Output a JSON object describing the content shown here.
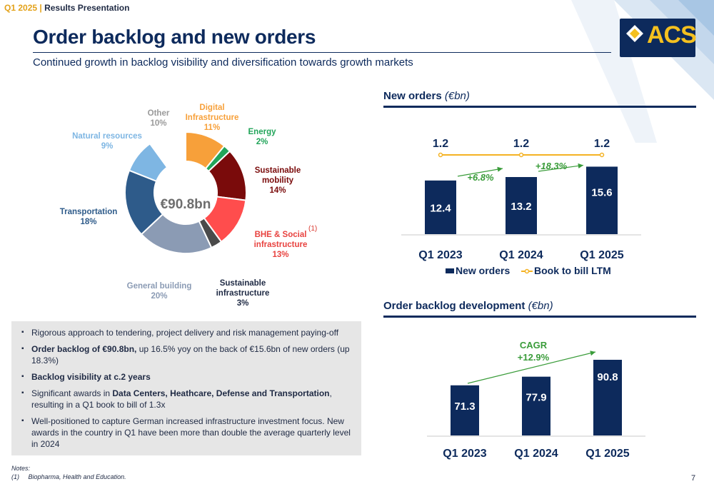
{
  "header": {
    "quarter": "Q1 2025",
    "separator": "|",
    "deck": "Results Presentation",
    "title": "Order backlog and new orders",
    "subtitle": "Continued growth in backlog visibility and diversification towards growth markets"
  },
  "logo": {
    "text": "ACS"
  },
  "donut": {
    "center": "€90.8bn",
    "colors": {
      "digital": "#f7a03a",
      "energy": "#22a55a",
      "mobility": "#7a0b0b",
      "bhe": "#ff4d4d",
      "sustainable_infra": "#4a4a4a",
      "general": "#8b9bb4",
      "transport": "#2e5b8a",
      "natural": "#7eb6e3",
      "other": "#ffffff"
    },
    "segments": [
      {
        "key": "digital",
        "name": "Digital Infrastructure",
        "pct": 11,
        "label_lines": [
          "Digital",
          "Infrastructure"
        ],
        "pct_text": "11%",
        "color": "#f7a03a"
      },
      {
        "key": "energy",
        "name": "Energy",
        "pct": 2,
        "label_lines": [
          "Energy"
        ],
        "pct_text": "2%",
        "color": "#22a55a"
      },
      {
        "key": "mobility",
        "name": "Sustainable mobility",
        "pct": 14,
        "label_lines": [
          "Sustainable",
          "mobility"
        ],
        "pct_text": "14%",
        "color": "#7a0b0b"
      },
      {
        "key": "bhe",
        "name": "BHE & Social infrastructure",
        "pct": 13,
        "label_lines": [
          "BHE & Social",
          "infrastructure"
        ],
        "pct_text": "13%",
        "color": "#ff4d4d"
      },
      {
        "key": "sustainable_infra",
        "name": "Sustainable infrastructure",
        "pct": 3,
        "label_lines": [
          "Sustainable",
          "infrastructure"
        ],
        "pct_text": "3%",
        "color": "#4a4a4a"
      },
      {
        "key": "general",
        "name": "General building",
        "pct": 20,
        "label_lines": [
          "General building"
        ],
        "pct_text": "20%",
        "color": "#8b9bb4"
      },
      {
        "key": "transport",
        "name": "Transportation",
        "pct": 18,
        "label_lines": [
          "Transportation"
        ],
        "pct_text": "18%",
        "color": "#2e5b8a"
      },
      {
        "key": "natural",
        "name": "Natural resources",
        "pct": 9,
        "label_lines": [
          "Natural resources"
        ],
        "pct_text": "9%",
        "color": "#7eb6e3"
      },
      {
        "key": "other",
        "name": "Other",
        "pct": 10,
        "label_lines": [
          "Other"
        ],
        "pct_text": "10%",
        "color": "#ffffff"
      }
    ],
    "footnote_marker": "(1)"
  },
  "new_orders": {
    "title": "New orders",
    "unit": "(€bn)",
    "categories": [
      "Q1 2023",
      "Q1 2024",
      "Q1 2025"
    ],
    "values": [
      12.4,
      13.2,
      15.6
    ],
    "value_labels": [
      "12.4",
      "13.2",
      "15.6"
    ],
    "book_to_bill": [
      1.2,
      1.2,
      1.2
    ],
    "btb_labels": [
      "1.2",
      "1.2",
      "1.2"
    ],
    "growth_labels": [
      "+6.8%",
      "+18.3%"
    ],
    "legend": [
      "New orders",
      "Book to bill LTM"
    ],
    "bar_color": "#0d2a5c",
    "line_color": "#f4b223",
    "arrow_color": "#3a9c3a"
  },
  "backlog": {
    "title": "Order backlog development",
    "unit": "(€bn)",
    "categories": [
      "Q1 2023",
      "Q1 2024",
      "Q1 2025"
    ],
    "values": [
      71.3,
      77.9,
      90.8
    ],
    "value_labels": [
      "71.3",
      "77.9",
      "90.8"
    ],
    "cagr_label": "CAGR",
    "cagr_value": "+12.9%",
    "bar_color": "#0d2a5c",
    "arrow_color": "#3a9c3a"
  },
  "chart_data": [
    {
      "type": "pie",
      "title": "",
      "categories": [
        "Digital Infrastructure",
        "Energy",
        "Sustainable mobility",
        "BHE & Social infrastructure",
        "Sustainable infrastructure",
        "General building",
        "Transportation",
        "Natural resources",
        "Other"
      ],
      "values": [
        11,
        2,
        14,
        13,
        3,
        20,
        18,
        9,
        10
      ]
    },
    {
      "type": "bar",
      "title": "New orders (€bn)",
      "categories": [
        "Q1 2023",
        "Q1 2024",
        "Q1 2025"
      ],
      "series": [
        {
          "name": "New orders",
          "values": [
            12.4,
            13.2,
            15.6
          ]
        },
        {
          "name": "Book to bill LTM",
          "values": [
            1.2,
            1.2,
            1.2
          ]
        }
      ],
      "legend": "bottom"
    },
    {
      "type": "bar",
      "title": "Order backlog development (€bn)",
      "categories": [
        "Q1 2023",
        "Q1 2024",
        "Q1 2025"
      ],
      "values": [
        71.3,
        77.9,
        90.8
      ]
    }
  ],
  "bullets": [
    {
      "bold": "",
      "text": "Rigorous approach to tendering, project delivery and risk management paying-off"
    },
    {
      "bold": "Order backlog of €90.8bn,",
      "text": " up 16.5% yoy on the back of €15.6bn of new orders (up 18.3%)"
    },
    {
      "bold": "Backlog visibility at c.2 years",
      "text": ""
    },
    {
      "bold_parts": [
        "Significant awards in ",
        "Data Centers, Heathcare, Defense and Transportation",
        ", resulting in a Q1 book to bill of 1.3x"
      ]
    },
    {
      "bold": "",
      "text": "Well-positioned to capture German increased infrastructure investment focus. New awards in the country in Q1 have been more than double the average quarterly level in 2024"
    }
  ],
  "notes": {
    "title": "Notes:",
    "marker": "(1)",
    "text": "Biopharma, Health and Education."
  },
  "page_number": "7"
}
